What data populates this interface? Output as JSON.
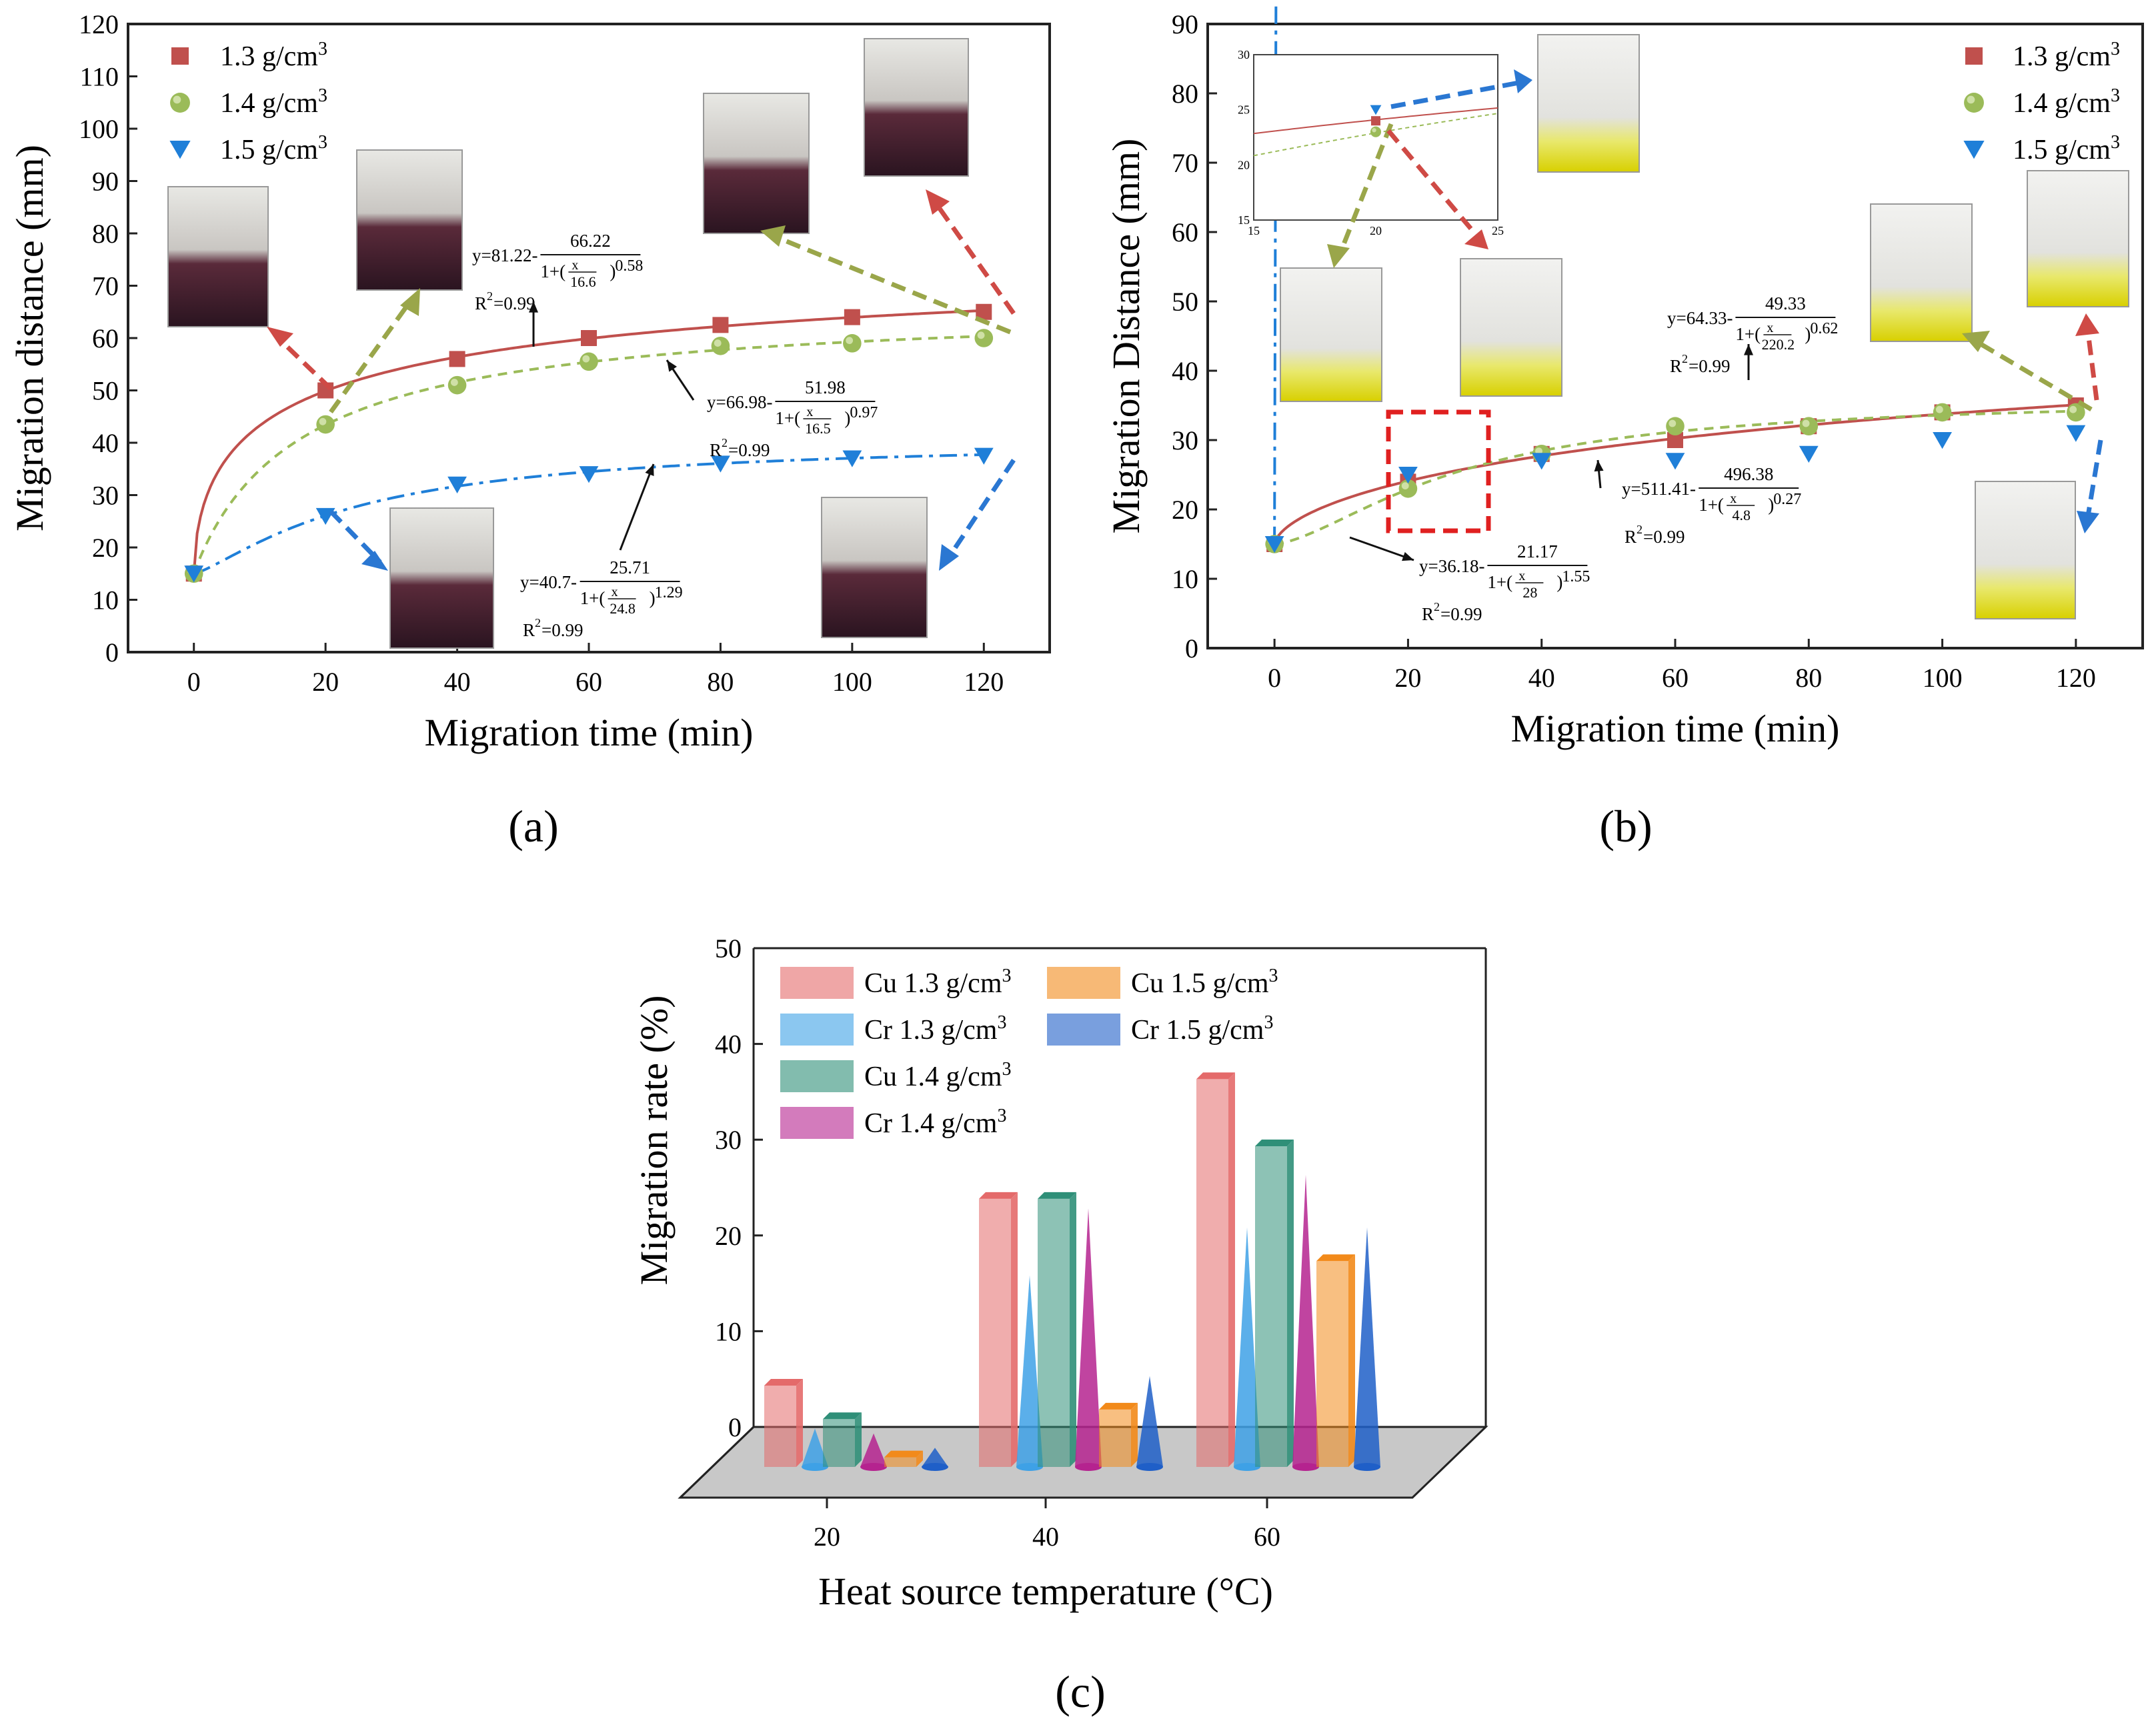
{
  "colors": {
    "red": "#c0504d",
    "green": "#9bbb59",
    "blue": "#1f7fd8",
    "red_dash": "#cf4a45",
    "green_dash": "#9aa64a",
    "blue_dash": "#2a77d2"
  },
  "panels": [
    {
      "id": "a",
      "caption": "(a)",
      "chart_data": {
        "type": "line",
        "xlabel": "Migration time (min)",
        "ylabel": "Migration distance (mm)",
        "xlim": [
          -10,
          130
        ],
        "ylim": [
          0,
          120
        ],
        "xticks": [
          0,
          20,
          40,
          60,
          80,
          100,
          120
        ],
        "yticks": [
          0,
          10,
          20,
          30,
          40,
          50,
          60,
          70,
          80,
          90,
          100,
          110,
          120
        ],
        "legend_position": "top-left",
        "x": [
          0,
          20,
          40,
          60,
          80,
          100,
          120
        ],
        "series": [
          {
            "name": "1.3 g/cm",
            "sup": "3",
            "marker": "square",
            "values": [
              15,
              50,
              56,
              60,
              62.5,
              64,
              65
            ],
            "fit": {
              "A": 81.22,
              "B": 66.22,
              "x0": 16.6,
              "p": 0.58
            }
          },
          {
            "name": "1.4 g/cm",
            "sup": "3",
            "marker": "circle",
            "values": [
              15,
              43.5,
              51,
              55.5,
              58.5,
              59,
              60
            ],
            "fit": {
              "A": 66.98,
              "B": 51.98,
              "x0": 16.5,
              "p": 0.97
            }
          },
          {
            "name": "1.5 g/cm",
            "sup": "3",
            "marker": "triangle",
            "values": [
              15,
              26,
              32,
              34,
              36,
              37,
              37.5
            ],
            "fit": {
              "A": 40.7,
              "B": 25.71,
              "x0": 24.8,
              "p": 1.29
            }
          }
        ],
        "equations": [
          {
            "y": "y=81.22-",
            "num": "66.22",
            "den": "16.6",
            "p": "0.58",
            "r2": "=0.99"
          },
          {
            "y": "y=66.98-",
            "num": "51.98",
            "den": "16.5",
            "p": "0.97",
            "r2": "=0.99"
          },
          {
            "y": "y=40.7-",
            "num": "25.71",
            "den": "24.8",
            "p": "1.29",
            "r2": "=0.99"
          }
        ]
      }
    },
    {
      "id": "b",
      "caption": "(b)",
      "chart_data": {
        "type": "line",
        "xlabel": "Migration time (min)",
        "ylabel": "Migration Distance (mm)",
        "xlim": [
          -10,
          130
        ],
        "ylim": [
          0,
          90
        ],
        "xticks": [
          0,
          20,
          40,
          60,
          80,
          100,
          120
        ],
        "yticks": [
          0,
          10,
          20,
          30,
          40,
          50,
          60,
          70,
          80,
          90
        ],
        "legend_position": "top-right",
        "x": [
          0,
          20,
          40,
          60,
          80,
          100,
          120
        ],
        "series": [
          {
            "name": "1.3 g/cm",
            "sup": "3",
            "marker": "square",
            "values": [
              15,
              24,
              28,
              30,
              32,
              34,
              35
            ],
            "fit": {
              "A": 64.33,
              "B": 49.33,
              "x0": 220.2,
              "p": 0.62
            }
          },
          {
            "name": "1.4 g/cm",
            "sup": "3",
            "marker": "circle",
            "values": [
              15,
              23,
              28,
              32,
              32,
              34,
              34
            ],
            "fit": {
              "A": 36.18,
              "B": 21.17,
              "x0": 28,
              "p": 1.55
            }
          },
          {
            "name": "1.5 g/cm",
            "sup": "3",
            "marker": "triangle",
            "values": [
              15,
              25,
              27,
              27,
              28,
              30,
              31
            ],
            "fit": {
              "A": 511.41,
              "B": 496.38,
              "x0": 4.8,
              "p": 0.27
            }
          }
        ],
        "equations": [
          {
            "y": "y=64.33-",
            "num": "49.33",
            "den": "220.2",
            "p": "0.62",
            "r2": "=0.99"
          },
          {
            "y": "y=511.41-",
            "num": "496.38",
            "den": "4.8",
            "p": "0.27",
            "r2": "=0.99"
          },
          {
            "y": "y=36.18-",
            "num": "21.17",
            "den": "28",
            "p": "1.55",
            "r2": "=0.99"
          }
        ],
        "inset": {
          "xlim": [
            15,
            25
          ],
          "ylim": [
            15,
            30
          ],
          "xticks": [
            15,
            20,
            25
          ],
          "yticks": [
            15,
            20,
            25,
            30
          ]
        }
      }
    },
    {
      "id": "c",
      "caption": "(c)",
      "chart_data": {
        "type": "bar",
        "xlabel": "Heat source temperature (°C)",
        "ylabel": "Migration rate (%)",
        "ylim": [
          0,
          50
        ],
        "yticks": [
          0,
          10,
          20,
          30,
          40,
          50
        ],
        "categories": [
          "20",
          "40",
          "60"
        ],
        "legend_position": "top-left",
        "series": [
          {
            "name": "Cu 1.3 g/cm",
            "sup": "3",
            "shape": "bar",
            "color": "#e46a6a",
            "values": [
              8.5,
              28,
              40.5
            ]
          },
          {
            "name": "Cr 1.3 g/cm",
            "sup": "3",
            "shape": "cone",
            "color": "#3ea1e6",
            "values": [
              4,
              20,
              25
            ]
          },
          {
            "name": "Cu 1.4 g/cm",
            "sup": "3",
            "shape": "bar",
            "color": "#2f8f78",
            "values": [
              5,
              28,
              33.5
            ]
          },
          {
            "name": "Cr 1.4 g/cm",
            "sup": "3",
            "shape": "cone",
            "color": "#b5238f",
            "values": [
              3.5,
              27,
              30.5
            ]
          },
          {
            "name": "Cu 1.5 g/cm",
            "sup": "3",
            "shape": "bar",
            "color": "#f28a1a",
            "values": [
              1,
              6,
              21.5
            ]
          },
          {
            "name": "Cr 1.5 g/cm",
            "sup": "3",
            "shape": "cone",
            "color": "#1f5fc8",
            "values": [
              2,
              9.5,
              25
            ]
          }
        ]
      }
    }
  ]
}
